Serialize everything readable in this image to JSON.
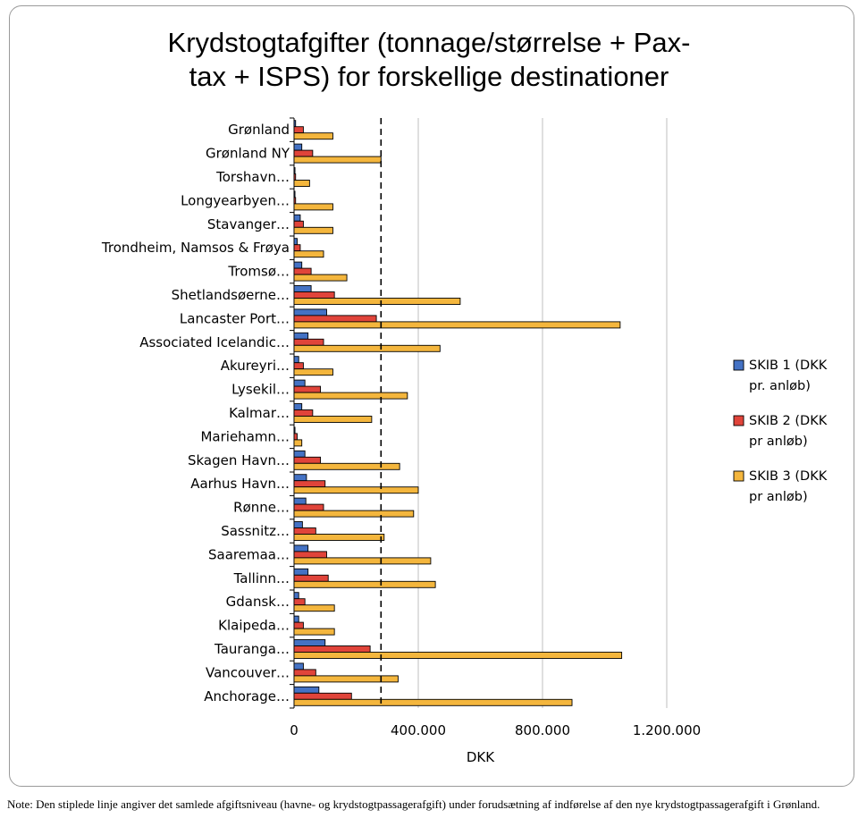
{
  "chart_data": {
    "type": "bar",
    "orientation": "horizontal",
    "title": "Krydstogtafgifter (tonnage/størrelse + Pax-tax + ISPS) for forskellige destinationer",
    "title_lines": [
      "Krydstogtafgifter (tonnage/størrelse + Pax-",
      "tax + ISPS) for forskellige destinationer"
    ],
    "xlabel": "DKK",
    "ylabel": "",
    "xlim": [
      0,
      1200000
    ],
    "xticks": [
      0,
      400000,
      800000,
      1200000
    ],
    "xtick_labels": [
      "0",
      "400.000",
      "800.000",
      "1.200.000"
    ],
    "gridlines": "vertical",
    "legend_position": "right",
    "reference_line": {
      "value": 280000,
      "style": "dashed"
    },
    "categories": [
      "Grønland",
      "Grønland NY",
      "Torshavn…",
      "Longyearbyen…",
      "Stavanger…",
      "Trondheim, Namsos & Frøya",
      "Tromsø…",
      "Shetlandsøerne…",
      "Lancaster Port…",
      "Associated Icelandic…",
      "Akureyri…",
      "Lysekil…",
      "Kalmar…",
      "Mariehamn…",
      "Skagen Havn…",
      "Aarhus Havn…",
      "Rønne…",
      "Sassnitz…",
      "Saaremaa…",
      "Tallinn…",
      "Gdansk…",
      "Klaipeda…",
      "Tauranga…",
      "Vancouver…",
      "Anchorage…"
    ],
    "series": [
      {
        "name": "SKIB 1 (DKK pr. anløb)",
        "name_lines": [
          "SKIB 1 (DKK",
          "pr. anløb)"
        ],
        "color": "#4472C4",
        "values": [
          5000,
          25000,
          3000,
          3000,
          20000,
          10000,
          25000,
          55000,
          105000,
          45000,
          15000,
          35000,
          25000,
          3000,
          35000,
          40000,
          38000,
          27000,
          45000,
          45000,
          15000,
          15000,
          100000,
          30000,
          80000
        ]
      },
      {
        "name": "SKIB 2 (DKK pr anløb)",
        "name_lines": [
          "SKIB 2 (DKK",
          "pr anløb)"
        ],
        "color": "#E0443A",
        "values": [
          30000,
          60000,
          5000,
          5000,
          30000,
          20000,
          55000,
          130000,
          265000,
          95000,
          30000,
          85000,
          60000,
          10000,
          85000,
          100000,
          95000,
          70000,
          105000,
          110000,
          35000,
          30000,
          245000,
          70000,
          185000
        ]
      },
      {
        "name": "SKIB 3 (DKK pr anløb)",
        "name_lines": [
          "SKIB 3 (DKK",
          "pr anløb)"
        ],
        "color": "#F4B63D",
        "values": [
          125000,
          280000,
          50000,
          125000,
          125000,
          95000,
          170000,
          535000,
          1050000,
          470000,
          125000,
          365000,
          250000,
          25000,
          340000,
          400000,
          385000,
          290000,
          440000,
          455000,
          130000,
          130000,
          1055000,
          335000,
          895000
        ]
      }
    ]
  },
  "note": "Note: Den stiplede linje angiver det samlede afgiftsniveau (havne- og krydstogtpassagerafgift) under forudsætning af indførelse af den nye krydstogtpassagerafgift i Grønland."
}
